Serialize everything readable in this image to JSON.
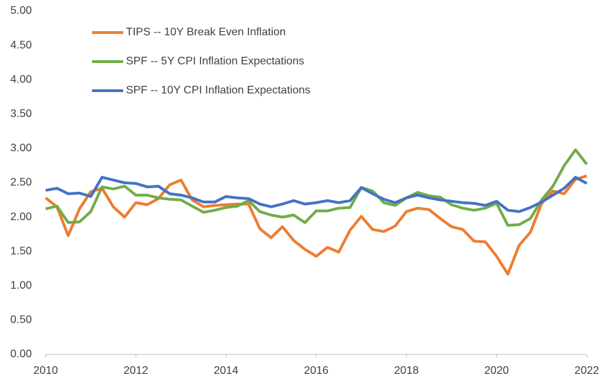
{
  "chart_data": {
    "type": "line",
    "x": [
      2010,
      2010.25,
      2010.5,
      2010.75,
      2011,
      2011.25,
      2011.5,
      2011.75,
      2012,
      2012.25,
      2012.5,
      2012.75,
      2013,
      2013.25,
      2013.5,
      2013.75,
      2014,
      2014.25,
      2014.5,
      2014.75,
      2015,
      2015.25,
      2015.5,
      2015.75,
      2016,
      2016.25,
      2016.5,
      2016.75,
      2017,
      2017.25,
      2017.5,
      2017.75,
      2018,
      2018.25,
      2018.5,
      2018.75,
      2019,
      2019.25,
      2019.5,
      2019.75,
      2020,
      2020.25,
      2020.5,
      2020.75,
      2021,
      2021.25,
      2021.5,
      2021.75,
      2022
    ],
    "series": [
      {
        "name": "TIPS -- 10Y Break Even Inflation",
        "color": "#ed7d31",
        "values": [
          2.28,
          2.15,
          1.73,
          2.12,
          2.37,
          2.42,
          2.15,
          2.0,
          2.21,
          2.18,
          2.27,
          2.47,
          2.54,
          2.25,
          2.15,
          2.17,
          2.18,
          2.19,
          2.19,
          1.83,
          1.7,
          1.86,
          1.66,
          1.53,
          1.43,
          1.56,
          1.49,
          1.81,
          2.01,
          1.82,
          1.79,
          1.87,
          2.08,
          2.13,
          2.11,
          1.98,
          1.86,
          1.82,
          1.65,
          1.64,
          1.43,
          1.17,
          1.59,
          1.78,
          2.2,
          2.38,
          2.34,
          2.55,
          2.6
        ]
      },
      {
        "name": "SPF -- 5Y CPI Inflation Expectations",
        "color": "#70ad47",
        "values": [
          2.12,
          2.16,
          1.92,
          1.93,
          2.08,
          2.44,
          2.41,
          2.45,
          2.32,
          2.32,
          2.28,
          2.26,
          2.25,
          2.16,
          2.07,
          2.1,
          2.14,
          2.16,
          2.24,
          2.08,
          2.03,
          2.0,
          2.03,
          1.92,
          2.09,
          2.09,
          2.13,
          2.14,
          2.43,
          2.38,
          2.21,
          2.17,
          2.28,
          2.36,
          2.31,
          2.29,
          2.18,
          2.13,
          2.1,
          2.13,
          2.2,
          1.88,
          1.89,
          1.98,
          2.25,
          2.45,
          2.75,
          2.98,
          2.77
        ]
      },
      {
        "name": "SPF -- 10Y CPI Inflation Expectations",
        "color": "#4472c4",
        "values": [
          2.39,
          2.42,
          2.34,
          2.35,
          2.3,
          2.58,
          2.54,
          2.5,
          2.49,
          2.44,
          2.45,
          2.34,
          2.32,
          2.28,
          2.22,
          2.22,
          2.3,
          2.28,
          2.27,
          2.19,
          2.15,
          2.19,
          2.24,
          2.19,
          2.21,
          2.24,
          2.21,
          2.24,
          2.43,
          2.34,
          2.26,
          2.21,
          2.28,
          2.32,
          2.28,
          2.25,
          2.23,
          2.21,
          2.2,
          2.17,
          2.23,
          2.1,
          2.08,
          2.14,
          2.22,
          2.32,
          2.42,
          2.58,
          2.49
        ]
      }
    ],
    "xlim": [
      2010,
      2022
    ],
    "xticks": [
      2010,
      2012,
      2014,
      2016,
      2018,
      2020,
      2022
    ],
    "ylim": [
      0,
      5
    ],
    "yticks": [
      {
        "value": 0,
        "label": "0.00"
      },
      {
        "value": 0.5,
        "label": "0.50"
      },
      {
        "value": 1,
        "label": "1.00"
      },
      {
        "value": 1.5,
        "label": "1.50"
      },
      {
        "value": 2,
        "label": "2.00"
      },
      {
        "value": 2.5,
        "label": "2.50"
      },
      {
        "value": 3,
        "label": "3.00"
      },
      {
        "value": 3.5,
        "label": "3.50"
      },
      {
        "value": 4,
        "label": "4.00"
      },
      {
        "value": 4.5,
        "label": "4.50"
      },
      {
        "value": 5,
        "label": "5.00"
      }
    ],
    "grid": false,
    "legend": "top-left"
  }
}
